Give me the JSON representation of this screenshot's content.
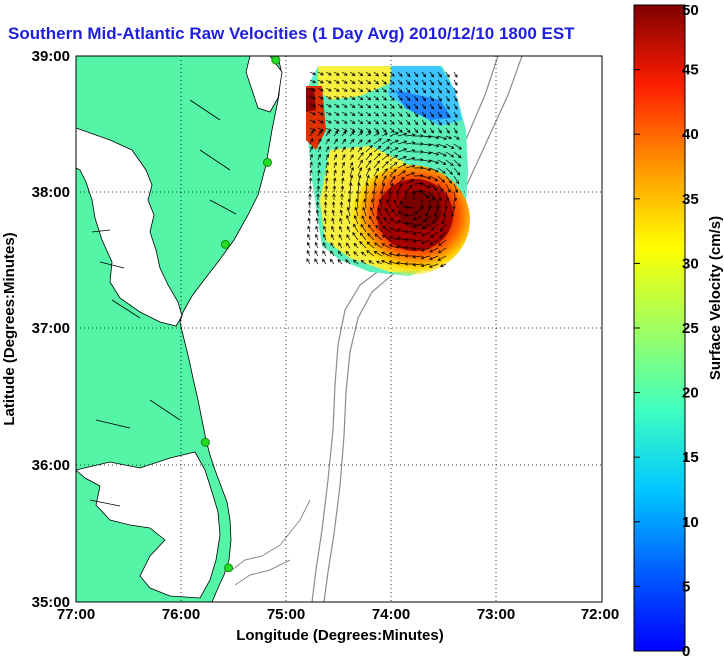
{
  "title": "Southern Mid-Atlantic Raw Velocities (1 Day Avg) 2010/12/10 1800 EST",
  "colors": {
    "land": "#55f5a8",
    "water": "#ffffff",
    "bathymetry": "#8c8c8c",
    "coast": "#000000",
    "title": "#1f1fdd",
    "station": "#22dd22"
  },
  "map": {
    "x_axis": {
      "label": "Longitude (Degrees:Minutes)",
      "ticks": [
        "77:00",
        "76:00",
        "75:00",
        "74:00",
        "73:00",
        "72:00"
      ]
    },
    "y_axis": {
      "label": "Latitude (Degrees:Minutes)",
      "ticks": [
        "39:00",
        "38:00",
        "37:00",
        "36:00",
        "35:00"
      ]
    },
    "grid": "dotted"
  },
  "colorbar": {
    "label": "Surface Velocity (cm/s)",
    "ticks": [
      "0",
      "5",
      "10",
      "15",
      "20",
      "25",
      "30",
      "35",
      "40",
      "45",
      "50"
    ],
    "colormap": "jet"
  },
  "stations": [
    {
      "lon": -75.1,
      "lat": 38.97
    },
    {
      "lon": -75.18,
      "lat": 38.22
    },
    {
      "lon": -75.58,
      "lat": 37.62
    },
    {
      "lon": -75.77,
      "lat": 36.17
    },
    {
      "lon": -75.55,
      "lat": 35.25
    }
  ]
}
